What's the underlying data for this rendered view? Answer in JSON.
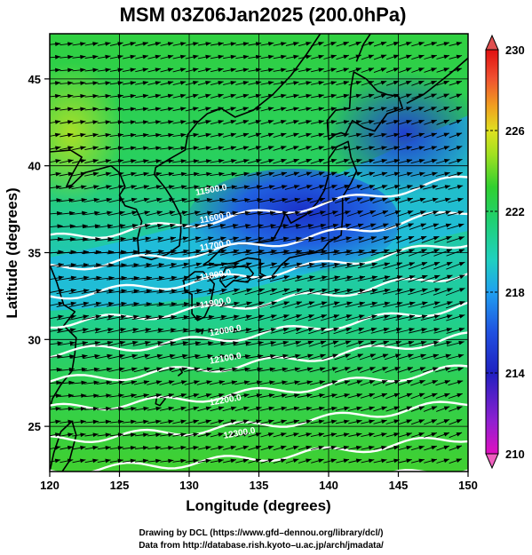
{
  "title": "MSM 03Z06Jan2025 (200.0hPa)",
  "credits": [
    "Drawing by DCL (https://www.gfd–dennou.org/library/dcl/)",
    "Data from http://database.rish.kyoto–u.ac.jp/arch/jmadata/"
  ],
  "chart_data": {
    "type": "map",
    "xlabel": "Longitude (degrees)",
    "ylabel": "Latitude (degrees)",
    "xlim": [
      120,
      150
    ],
    "ylim": [
      22.4,
      47.6
    ],
    "xticks": [
      120,
      125,
      130,
      135,
      140,
      145,
      150
    ],
    "yticks": [
      25,
      30,
      35,
      40,
      45
    ],
    "grid": true,
    "colorbar": {
      "min": 210,
      "max": 230,
      "tick_labels": [
        230,
        226,
        222,
        218,
        214,
        210
      ],
      "colors": [
        "#e010c0",
        "#9020d0",
        "#2020c0",
        "#2050e0",
        "#20a0f0",
        "#20d0c0",
        "#20d070",
        "#30d030",
        "#a0e020",
        "#e0e020",
        "#f0a020",
        "#f05030",
        "#e01010"
      ]
    },
    "contour_labels": [
      {
        "text": "11500.0",
        "lon": 130.5,
        "lat": 38.3
      },
      {
        "text": "11600.0",
        "lon": 130.8,
        "lat": 36.7
      },
      {
        "text": "11700.0",
        "lon": 130.8,
        "lat": 35.1
      },
      {
        "text": "11800.0",
        "lon": 130.8,
        "lat": 33.4
      },
      {
        "text": "11900.0",
        "lon": 130.8,
        "lat": 31.8
      },
      {
        "text": "12000.0",
        "lon": 131.5,
        "lat": 30.2
      },
      {
        "text": "12100.0",
        "lon": 131.5,
        "lat": 28.6
      },
      {
        "text": "12200.0",
        "lon": 131.5,
        "lat": 26.2
      },
      {
        "text": "12300.0",
        "lon": 132.5,
        "lat": 24.3
      }
    ]
  }
}
